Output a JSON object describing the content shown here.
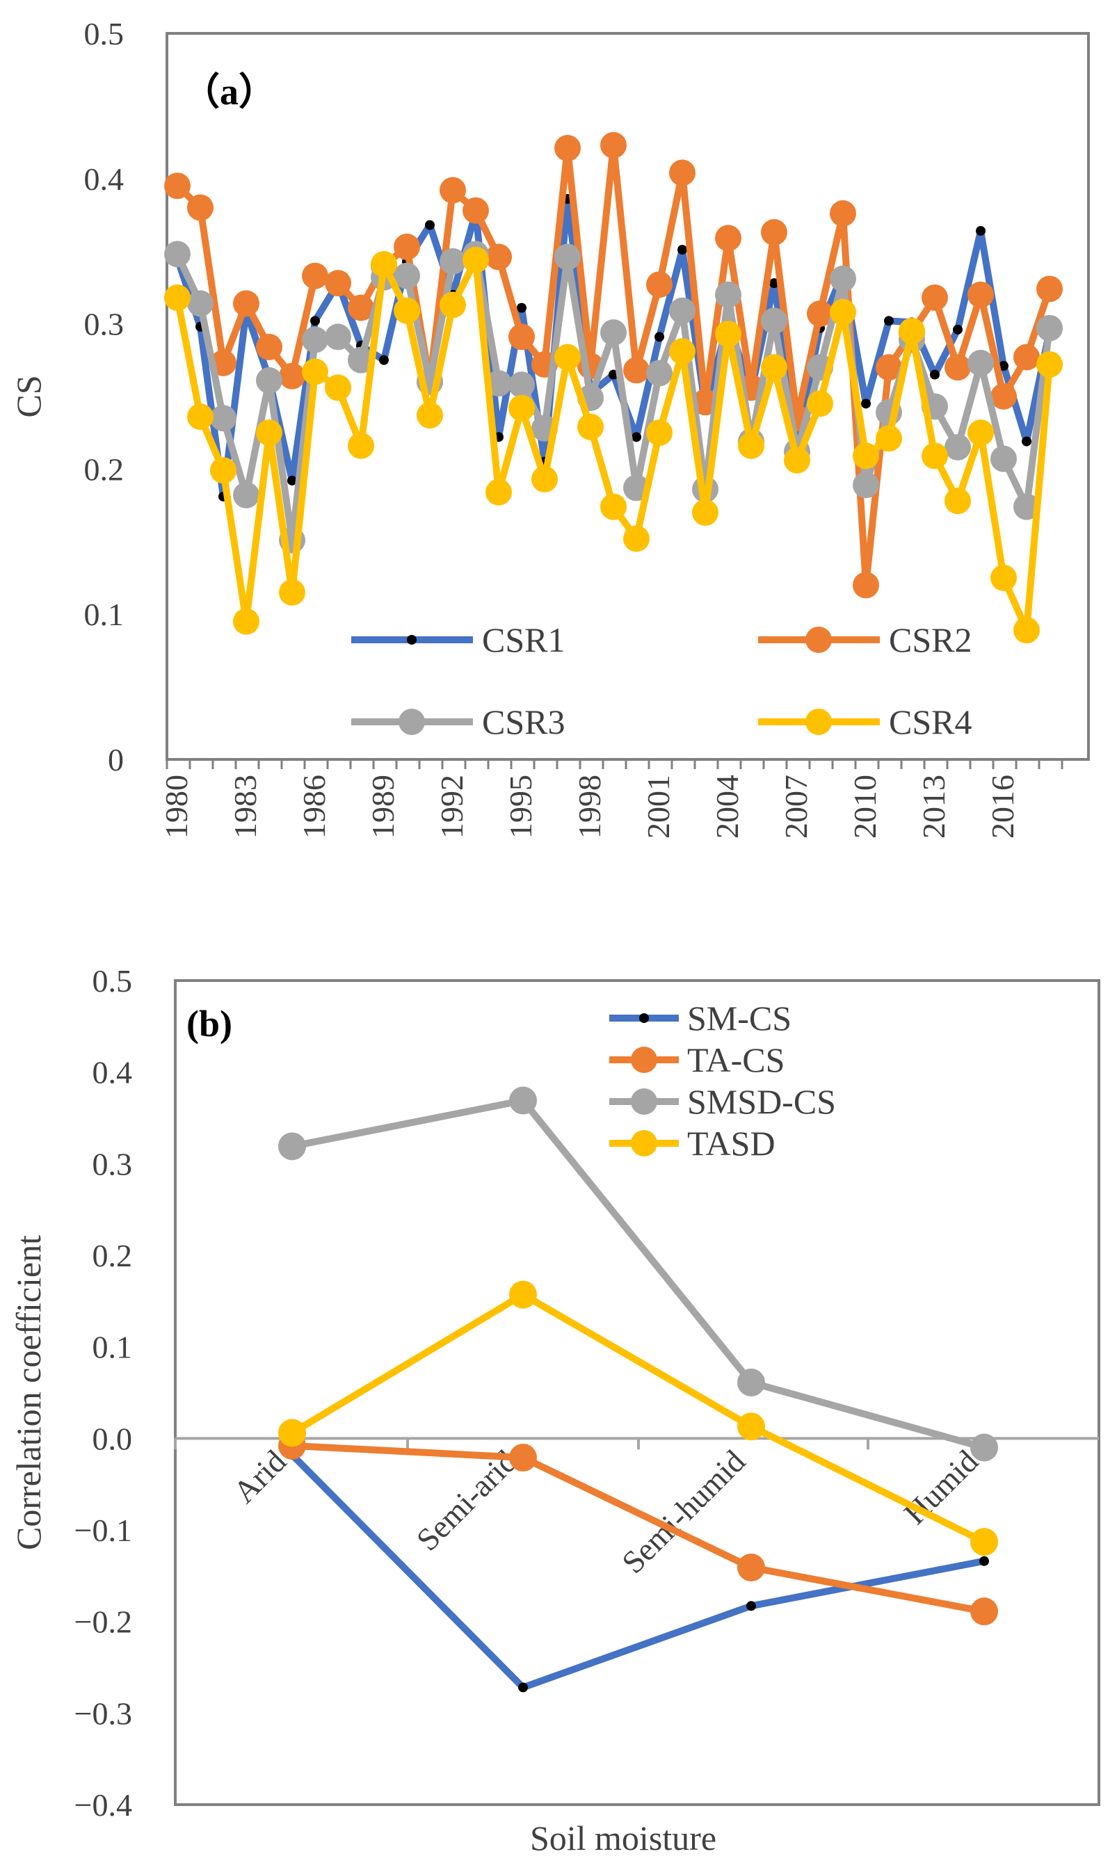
{
  "chart_data": [
    {
      "type": "line",
      "panel_label": "（a）",
      "ylabel": "CS",
      "xlabel": "",
      "ylim": [
        0,
        0.5
      ],
      "y_ticks": [
        "0",
        "0.1",
        "0.2",
        "0.3",
        "0.4",
        "0.5"
      ],
      "x": [
        1980,
        1981,
        1982,
        1983,
        1984,
        1985,
        1986,
        1987,
        1988,
        1989,
        1990,
        1991,
        1992,
        1993,
        1994,
        1995,
        1996,
        1997,
        1998,
        1999,
        2000,
        2001,
        2002,
        2003,
        2004,
        2005,
        2006,
        2007,
        2008,
        2009,
        2010,
        2011,
        2012,
        2013,
        2014,
        2015,
        2016,
        2017,
        2018
      ],
      "x_ticks": [
        "1980",
        "1983",
        "1986",
        "1989",
        "1992",
        "1995",
        "1998",
        "2001",
        "2004",
        "2007",
        "2010",
        "2013",
        "2016"
      ],
      "legend_position": "bottom-inside",
      "series": [
        {
          "name": "CSR1",
          "color": "#4472C4",
          "marker": "dot",
          "values": [
            0.345,
            0.298,
            0.181,
            0.309,
            0.262,
            0.192,
            0.302,
            0.328,
            0.285,
            0.275,
            0.343,
            0.368,
            0.32,
            0.377,
            0.222,
            0.311,
            0.205,
            0.386,
            0.252,
            0.265,
            0.222,
            0.291,
            0.351,
            0.243,
            0.301,
            0.253,
            0.328,
            0.22,
            0.297,
            0.335,
            0.245,
            0.302,
            0.301,
            0.265,
            0.296,
            0.364,
            0.271,
            0.219,
            0.295
          ]
        },
        {
          "name": "CSR2",
          "color": "#ED7D31",
          "marker": "circle",
          "values": [
            0.395,
            0.38,
            0.273,
            0.314,
            0.284,
            0.264,
            0.333,
            0.328,
            0.311,
            0.34,
            0.353,
            0.26,
            0.392,
            0.378,
            0.346,
            0.291,
            0.272,
            0.421,
            0.271,
            0.423,
            0.268,
            0.327,
            0.404,
            0.246,
            0.359,
            0.256,
            0.363,
            0.235,
            0.307,
            0.376,
            0.12,
            0.27,
            0.294,
            0.318,
            0.27,
            0.32,
            0.25,
            0.277,
            0.324
          ]
        },
        {
          "name": "CSR3",
          "color": "#A5A5A5",
          "marker": "circle",
          "values": [
            0.348,
            0.314,
            0.235,
            0.182,
            0.261,
            0.151,
            0.289,
            0.291,
            0.275,
            0.332,
            0.333,
            0.26,
            0.343,
            0.348,
            0.259,
            0.258,
            0.228,
            0.346,
            0.249,
            0.294,
            0.187,
            0.266,
            0.309,
            0.186,
            0.32,
            0.219,
            0.302,
            0.212,
            0.27,
            0.331,
            0.189,
            0.239,
            0.289,
            0.243,
            0.215,
            0.273,
            0.207,
            0.174,
            0.297
          ]
        },
        {
          "name": "CSR4",
          "color": "#FFC000",
          "marker": "circle",
          "values": [
            0.318,
            0.236,
            0.199,
            0.095,
            0.225,
            0.115,
            0.267,
            0.256,
            0.216,
            0.341,
            0.309,
            0.237,
            0.313,
            0.344,
            0.184,
            0.242,
            0.193,
            0.277,
            0.229,
            0.174,
            0.152,
            0.225,
            0.281,
            0.17,
            0.293,
            0.216,
            0.27,
            0.206,
            0.245,
            0.308,
            0.209,
            0.221,
            0.295,
            0.209,
            0.178,
            0.225,
            0.125,
            0.089,
            0.272
          ]
        }
      ]
    },
    {
      "type": "line",
      "panel_label": "(b)",
      "ylabel": "Correlation coefficient",
      "xlabel": "Soil moisture",
      "ylim": [
        -0.4,
        0.5
      ],
      "y_ticks": [
        "−0.4",
        "−0.3",
        "−0.2",
        "−0.1",
        "0.0",
        "0.1",
        "0.2",
        "0.3",
        "0.4",
        "0.5"
      ],
      "categories": [
        "Arid",
        "Semi-arid",
        "Semi-humid",
        "Humid"
      ],
      "legend_position": "top-right",
      "series": [
        {
          "name": "SM-CS",
          "color": "#4472C4",
          "marker": "dot",
          "values": [
            -0.018,
            -0.272,
            -0.183,
            -0.134
          ]
        },
        {
          "name": "TA-CS",
          "color": "#ED7D31",
          "marker": "circle",
          "values": [
            -0.008,
            -0.021,
            -0.141,
            -0.189
          ]
        },
        {
          "name": "SMSD-CS",
          "color": "#A5A5A5",
          "marker": "circle",
          "values": [
            0.319,
            0.369,
            0.061,
            -0.01
          ]
        },
        {
          "name": "TASD",
          "color": "#FFC000",
          "marker": "circle",
          "values": [
            0.006,
            0.157,
            0.013,
            -0.113
          ]
        }
      ]
    }
  ]
}
